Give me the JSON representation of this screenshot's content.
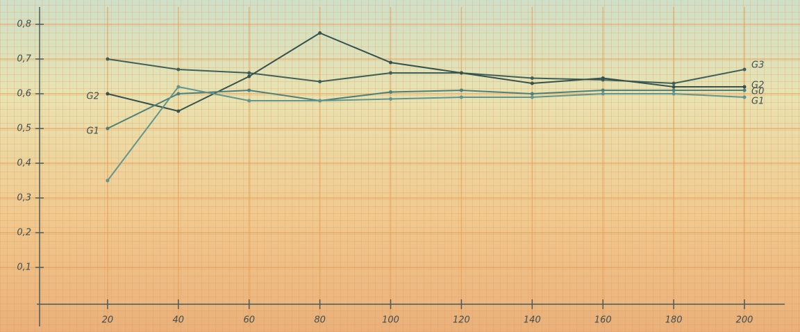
{
  "chart_data": {
    "type": "line",
    "x": [
      20,
      40,
      60,
      80,
      100,
      120,
      140,
      160,
      180,
      200
    ],
    "series": [
      {
        "name": "G3",
        "color": "#3f5f5a",
        "values": [
          0.7,
          0.67,
          0.66,
          0.635,
          0.66,
          0.66,
          0.645,
          0.64,
          0.63,
          0.67
        ]
      },
      {
        "name": "G2",
        "color": "#34524e",
        "values": [
          0.6,
          0.55,
          0.65,
          0.775,
          0.69,
          0.66,
          0.63,
          0.645,
          0.62,
          0.62
        ]
      },
      {
        "name": "G0",
        "color": "#4f7f7a",
        "values": [
          0.5,
          0.6,
          0.61,
          0.58,
          0.605,
          0.61,
          0.6,
          0.61,
          0.61,
          0.61
        ]
      },
      {
        "name": "G1",
        "color": "#5f9590",
        "values": [
          0.35,
          0.62,
          0.58,
          0.58,
          0.585,
          0.59,
          0.59,
          0.6,
          0.6,
          0.59
        ]
      }
    ],
    "annotations": [
      {
        "text": "G2",
        "x": 20,
        "y": 0.6
      },
      {
        "text": "G1",
        "x": 20,
        "y": 0.5
      }
    ],
    "xlim": [
      0,
      210
    ],
    "ylim": [
      0,
      0.8
    ],
    "xticks": [
      20,
      40,
      60,
      80,
      100,
      120,
      140,
      160,
      180,
      200
    ],
    "yticks": [
      {
        "value": 0.1,
        "label": "0,1"
      },
      {
        "value": 0.2,
        "label": "0,2"
      },
      {
        "value": 0.3,
        "label": "0,3"
      },
      {
        "value": 0.4,
        "label": "0,4"
      },
      {
        "value": 0.5,
        "label": "0,5"
      },
      {
        "value": 0.6,
        "label": "0,6"
      },
      {
        "value": 0.7,
        "label": "0,7"
      },
      {
        "value": 0.8,
        "label": "0,8"
      }
    ],
    "grid": true
  }
}
